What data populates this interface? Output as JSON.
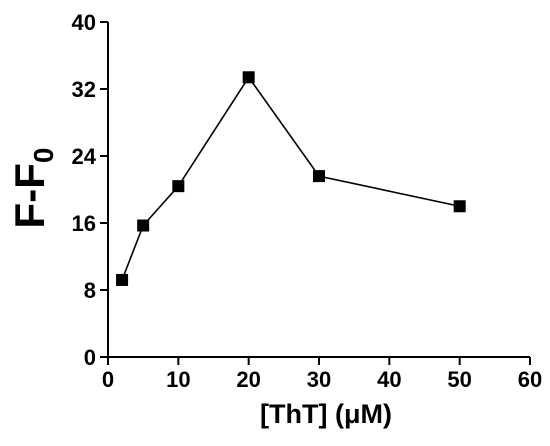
{
  "chart_data": {
    "type": "line",
    "x": [
      2,
      5,
      10,
      20,
      30,
      50
    ],
    "series": [
      {
        "values": [
          9.2,
          15.7,
          20.4,
          33.4,
          21.6,
          18.0
        ],
        "marker": "square",
        "color": "#000000"
      }
    ],
    "xlabel": "[ThT] (μM)",
    "ylabel": {
      "main": "F-F",
      "subscript": "0"
    },
    "xlim": [
      0,
      60
    ],
    "ylim": [
      0,
      40
    ],
    "x_ticks": [
      "0",
      "10",
      "20",
      "30",
      "40",
      "50",
      "60"
    ],
    "y_ticks": [
      "0",
      "8",
      "16",
      "24",
      "32",
      "40"
    ],
    "grid": false,
    "legend": "none"
  }
}
